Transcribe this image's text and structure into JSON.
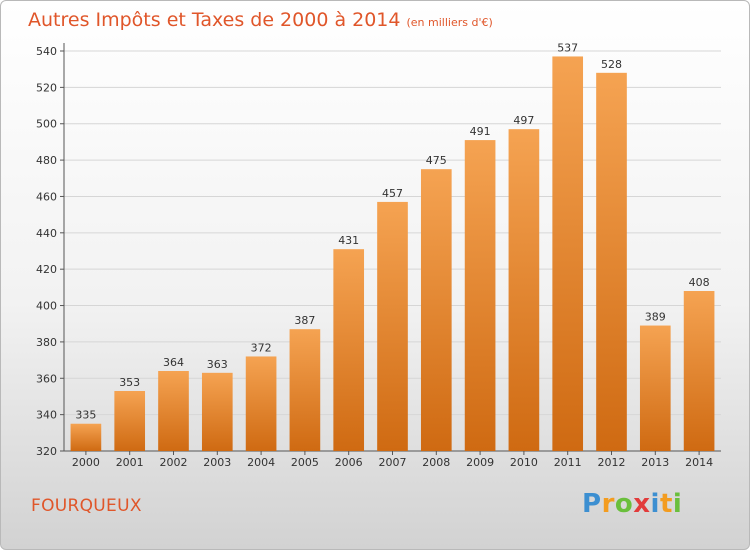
{
  "chart_data": {
    "type": "bar",
    "title": "Autres Impôts et Taxes de 2000 à 2014",
    "subtitle": "(en milliers d'€)",
    "categories": [
      "2000",
      "2001",
      "2002",
      "2003",
      "2004",
      "2005",
      "2006",
      "2007",
      "2008",
      "2009",
      "2010",
      "2011",
      "2012",
      "2013",
      "2014"
    ],
    "values": [
      335,
      353,
      364,
      363,
      372,
      387,
      431,
      457,
      475,
      491,
      497,
      537,
      528,
      389,
      408
    ],
    "ylim": [
      320,
      540
    ],
    "yticks": [
      320,
      340,
      360,
      380,
      400,
      420,
      440,
      460,
      480,
      500,
      520,
      540
    ],
    "grid": true,
    "bar_color_top": "#f5a352",
    "bar_color_bottom": "#cf6a12"
  },
  "town": "FOURQUEUX",
  "logo": {
    "letters": [
      "P",
      "r",
      "o",
      "x",
      "i",
      "t",
      "i"
    ],
    "colors": [
      "#3c8fd1",
      "#f39c1f",
      "#6abf3c",
      "#e23b3b",
      "#3c8fd1",
      "#f39c1f",
      "#6abf3c"
    ]
  }
}
